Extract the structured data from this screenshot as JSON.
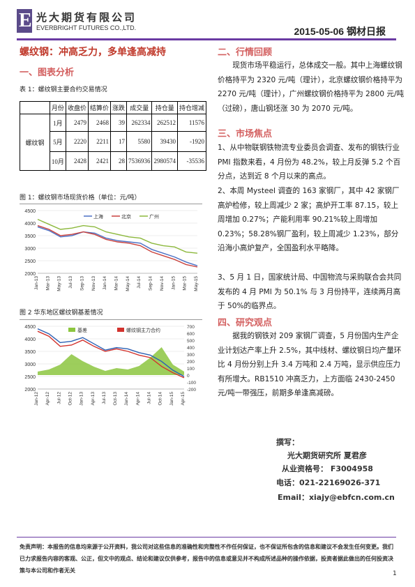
{
  "header": {
    "logo_letter": "E",
    "company_cn": "光大期货有限公司",
    "company_en": "EVERBRIGHT FUTURES CO.,LTD.",
    "date_title": "2015-05-06 钢材日报"
  },
  "headline": "螺纹钢：冲高乏力，多单逢高减持",
  "left": {
    "section1": "一、图表分析",
    "table_caption": "表 1：螺纹钢主要合约交易情况",
    "table": {
      "headers": [
        "月份",
        "收盘价",
        "结算价",
        "涨跌",
        "成交量",
        "持仓量",
        "持仓增减"
      ],
      "product": "螺纹钢",
      "rows": [
        [
          "1月",
          "2479",
          "2468",
          "39",
          "262334",
          "262512",
          "11576"
        ],
        [
          "5月",
          "2220",
          "2211",
          "17",
          "5580",
          "39430",
          "-1920"
        ],
        [
          "10月",
          "2428",
          "2421",
          "28",
          "7536936",
          "2980574",
          "-35536"
        ]
      ]
    },
    "fig1_caption": "图 1：螺纹钢市场现货价格（单位：元/吨）",
    "fig2_caption": "图 2  华东地区螺纹钢基差情况"
  },
  "chart_data": [
    {
      "type": "line",
      "x": [
        "Jan-13",
        "Mar-13",
        "May-13",
        "Jul-13",
        "Sep-13",
        "Nov-13",
        "Jan-14",
        "Mar-14",
        "May-14",
        "Jul-14",
        "Sep-14",
        "Nov-14",
        "Jan-15",
        "Mar-15",
        "May-15"
      ],
      "series": [
        {
          "name": "上海",
          "color": "#4a6fc4",
          "values": [
            3850,
            3700,
            3450,
            3500,
            3650,
            3600,
            3400,
            3300,
            3250,
            3200,
            2950,
            2800,
            2650,
            2450,
            2300
          ]
        },
        {
          "name": "北京",
          "color": "#c9413d",
          "values": [
            3900,
            3750,
            3500,
            3550,
            3650,
            3550,
            3350,
            3250,
            3200,
            3100,
            2850,
            2700,
            2550,
            2350,
            2250
          ]
        },
        {
          "name": "广州",
          "color": "#8cb83c",
          "values": [
            4150,
            3950,
            3750,
            3800,
            3900,
            3850,
            3650,
            3550,
            3450,
            3400,
            3200,
            3100,
            3050,
            2850,
            2800
          ]
        }
      ],
      "yticks": [
        "2000",
        "2500",
        "3000",
        "3500",
        "4000",
        "4500"
      ],
      "ylim": [
        2000,
        4500
      ]
    },
    {
      "type": "area",
      "x": [
        "Jan-12",
        "Apr-12",
        "Jul-12",
        "Oct-12",
        "Jan-13",
        "Apr-13",
        "Jul-13",
        "Oct-13",
        "Jan-14",
        "Apr-14",
        "Jul-14",
        "Oct-14",
        "Jan-15",
        "Apr-15"
      ],
      "series": [
        {
          "name": "基差",
          "color": "#8cc63f",
          "axis": "right",
          "values": [
            50,
            80,
            150,
            300,
            200,
            120,
            60,
            100,
            80,
            130,
            250,
            400,
            150,
            50
          ]
        },
        {
          "name": "螺纹钢主力合约",
          "color": "#d2322d",
          "axis": "left",
          "values": [
            4300,
            4100,
            3700,
            3750,
            3950,
            3700,
            3500,
            3600,
            3500,
            3350,
            3250,
            2900,
            2650,
            2450
          ]
        },
        {
          "name": "",
          "color": "#2b5fb3",
          "axis": "left",
          "values": [
            4400,
            4200,
            3850,
            3900,
            4050,
            3800,
            3550,
            3650,
            3600,
            3450,
            3350,
            3100,
            2750,
            2500
          ]
        }
      ],
      "yticks_left": [
        "2000",
        "2500",
        "3000",
        "3500",
        "4000",
        "4500"
      ],
      "yticks_right": [
        "-200",
        "-100",
        "0",
        "100",
        "200",
        "300",
        "400",
        "500",
        "600",
        "700"
      ],
      "ylim": [
        2000,
        4500
      ],
      "y2lim": [
        -200,
        700
      ]
    }
  ],
  "right": {
    "s2": "二、行情回顾",
    "p2": "现货市场平稳运行，总体成交一般。其中上海螺纹钢价格持平为 2320 元/吨（理计），北京螺纹钢价格持平为 2270 元/吨（理计），广州螺纹钢价格持平为 2800 元/吨（过磅），唐山钢坯涨 30 为 2070 元/吨。",
    "s3": "三、市场焦点",
    "p3a": "1、从中物联钢铁物流专业委员会调查、发布的钢铁行业 PMI 指数来看，4 月份为 48.2%，较上月反弹 5.2 个百分点，达到近 8 个月以来的高点。",
    "p3b": "2、本周 Mysteel 调查的 163 家钢厂，其中 42 家钢厂高炉检修，较上周减少 2 家；高炉开工率 87.15，较上周增加 0.27%；产能利用率 90.21%较上周增加 0.23%；58.28%钢厂盈利，较上周减少 1.23%，部分沿海小高炉复产，全国盈利水平略降。",
    "p3c": "3、5 月 1 日，国家统计局、中国物流与采购联合会共同发布的 4 月 PMI 为 50.1% 与 3 月份持平，连续两月高于 50%的临界点。",
    "s4": "四、研究观点",
    "p4": "据我的钢铁对 209 家钢厂调查，5 月份国内生产企业计划达产率上升 2.5%，其中线材、螺纹钢日均产量环比 4 月份分别上升 3.4 万吨和 2.4 万吨，显示供应压力有所增大。RB1510 冲高乏力，上方面临 2430-2450 元/吨一带强压，前期多单逢高减磅。",
    "sign": {
      "l1": "撰写：",
      "l2": "光大期货研究所  夏君彦",
      "l3": "从业资格号：  F3004958",
      "l4": "电话：021-22169026-371",
      "l5": "Email：xiajy@ebfcn.com.cn"
    }
  },
  "footer": {
    "disclaimer": "免责声明：本报告的信息均来源于公开资料，我公司对这些信息的准确性和完整性不作任何保证，也不保证所包含的信息和建议不会发生任何变更。我们已力求报告内容的客观、公正，但文中的观点、结论和建议仅供参考，报告中的信息或意见并不构成所述品种的操作依据，投资者据此做出的任何投资决策与本公司和作者无关",
    "page": "1"
  }
}
